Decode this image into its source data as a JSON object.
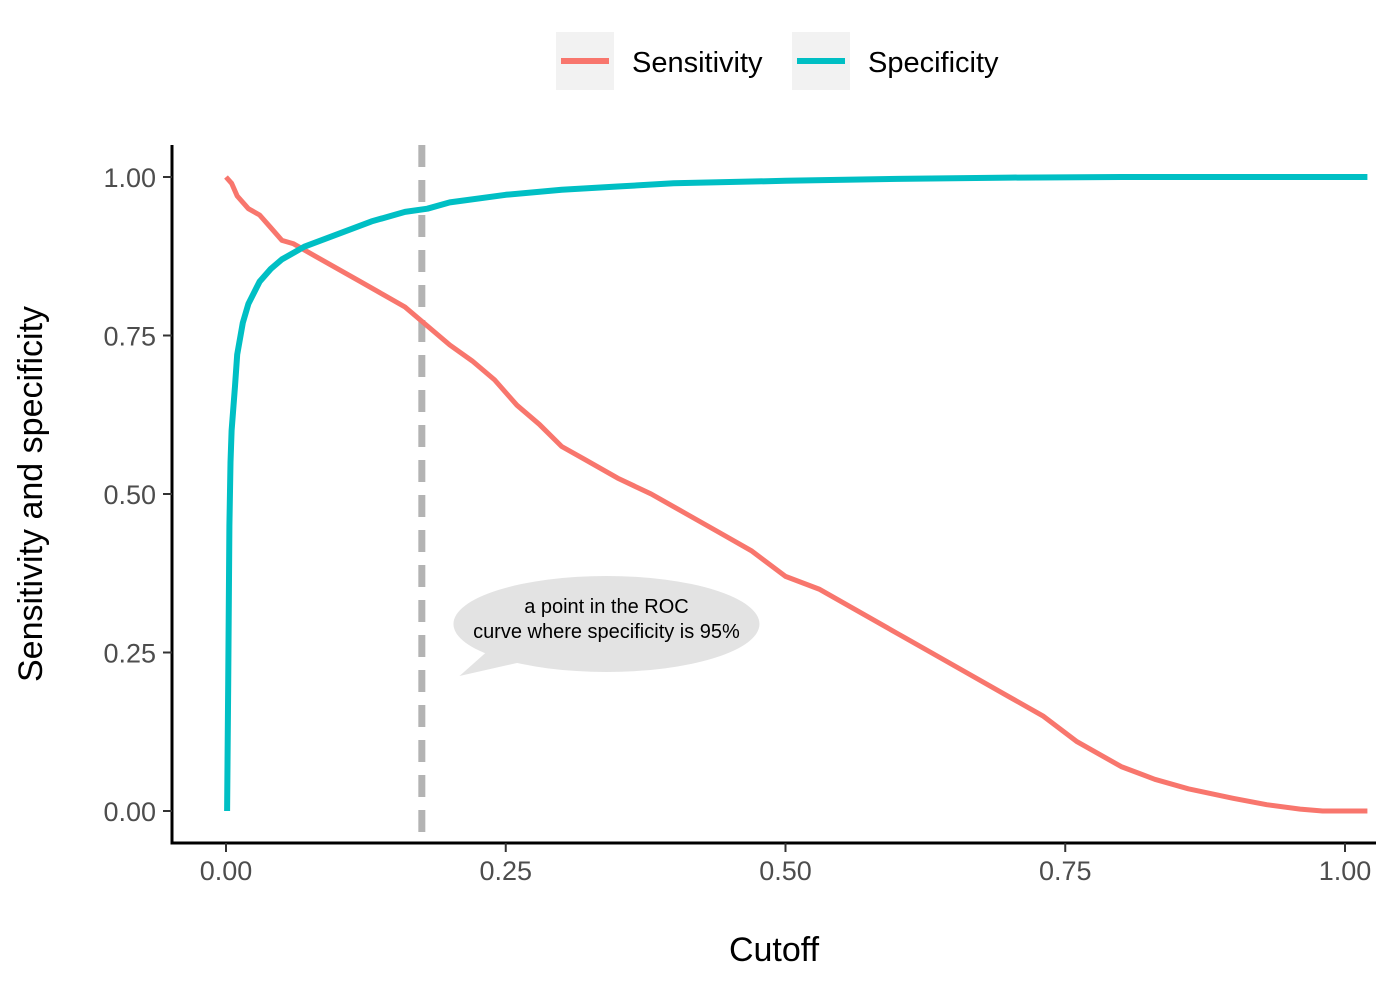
{
  "chart_data": {
    "type": "line",
    "title": "",
    "xlabel": "Cutoff",
    "ylabel": "Sensitivity and specificity",
    "xlim": [
      -0.05,
      1.03
    ],
    "ylim": [
      -0.05,
      1.05
    ],
    "x_ticks": [
      0,
      0.25,
      0.5,
      0.75,
      1.0
    ],
    "x_tick_labels": [
      "0.00",
      "0.25",
      "0.50",
      "0.75",
      "1.00"
    ],
    "y_ticks": [
      0,
      0.25,
      0.5,
      0.75,
      1.0
    ],
    "y_tick_labels": [
      "0.00",
      "0.25",
      "0.50",
      "0.75",
      "1.00"
    ],
    "grid": false,
    "legend_position": "top",
    "series": [
      {
        "name": "Sensitivity",
        "color": "#F8766D",
        "x": [
          0,
          0.005,
          0.01,
          0.02,
          0.03,
          0.04,
          0.05,
          0.06,
          0.08,
          0.1,
          0.12,
          0.14,
          0.16,
          0.18,
          0.2,
          0.22,
          0.24,
          0.26,
          0.28,
          0.3,
          0.32,
          0.35,
          0.38,
          0.41,
          0.44,
          0.47,
          0.5,
          0.53,
          0.56,
          0.6,
          0.63,
          0.66,
          0.7,
          0.73,
          0.76,
          0.8,
          0.83,
          0.86,
          0.9,
          0.93,
          0.96,
          0.98,
          1.0,
          1.02
        ],
        "y": [
          1.0,
          0.99,
          0.97,
          0.95,
          0.94,
          0.92,
          0.9,
          0.895,
          0.875,
          0.855,
          0.835,
          0.815,
          0.795,
          0.765,
          0.735,
          0.71,
          0.68,
          0.64,
          0.61,
          0.575,
          0.555,
          0.525,
          0.5,
          0.47,
          0.44,
          0.41,
          0.37,
          0.35,
          0.32,
          0.28,
          0.25,
          0.22,
          0.18,
          0.15,
          0.11,
          0.07,
          0.05,
          0.035,
          0.02,
          0.01,
          0.003,
          0.0,
          0.0,
          0.0
        ]
      },
      {
        "name": "Specificity",
        "color": "#00BFC4",
        "x": [
          0.001,
          0.002,
          0.003,
          0.004,
          0.005,
          0.008,
          0.01,
          0.015,
          0.02,
          0.03,
          0.04,
          0.05,
          0.07,
          0.1,
          0.13,
          0.16,
          0.18,
          0.2,
          0.25,
          0.3,
          0.35,
          0.4,
          0.5,
          0.6,
          0.7,
          0.8,
          0.9,
          1.0,
          1.02
        ],
        "y": [
          0.0,
          0.2,
          0.45,
          0.55,
          0.6,
          0.67,
          0.72,
          0.77,
          0.8,
          0.835,
          0.855,
          0.87,
          0.89,
          0.91,
          0.93,
          0.945,
          0.95,
          0.96,
          0.972,
          0.98,
          0.985,
          0.99,
          0.994,
          0.997,
          0.999,
          1.0,
          1.0,
          1.0,
          1.0
        ]
      }
    ],
    "reference_line": {
      "x": 0.175,
      "color": "#B3B3B3",
      "style": "dashed"
    },
    "annotation": {
      "lines": [
        "a point in the ROC",
        "curve where specificity is 95%"
      ],
      "x": 0.34,
      "y": 0.295,
      "fill": "#E3E3E3"
    }
  }
}
